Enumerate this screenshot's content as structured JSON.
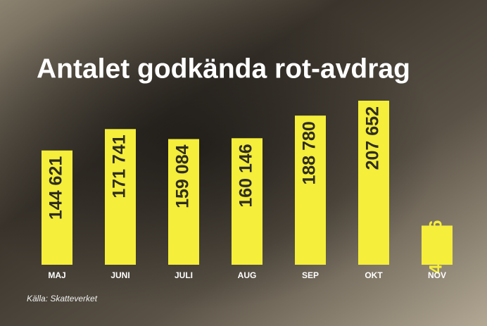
{
  "chart_data": {
    "type": "bar",
    "title": "Antalet godkända rot-avdrag",
    "categories": [
      "MAJ",
      "JUNI",
      "JULI",
      "AUG",
      "SEP",
      "OKT",
      "NOV"
    ],
    "values": [
      144621,
      171741,
      159084,
      160146,
      188780,
      207652,
      49546
    ],
    "value_labels": [
      "144 621",
      "171 741",
      "159 084",
      "160 146",
      "188 780",
      "207 652",
      "49 546"
    ],
    "color": "#f5ee3a",
    "source": "Källa: Skatteverket"
  }
}
